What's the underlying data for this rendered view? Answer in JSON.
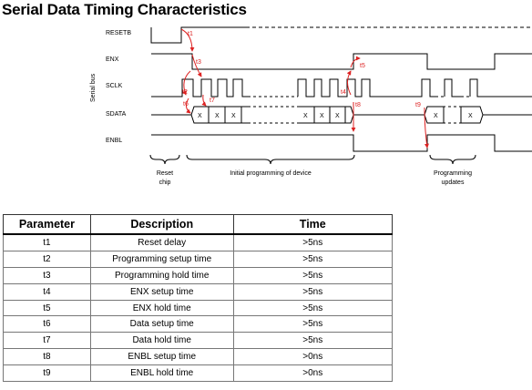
{
  "title": "Serial Data Timing Characteristics",
  "signals": {
    "resetb": "RESETB",
    "enx": "ENX",
    "sclk": "SCLK",
    "sdata": "SDATA",
    "enbl": "ENBL",
    "bus_label": "Serial bus"
  },
  "timing_labels": [
    "t1",
    "t2",
    "t3",
    "t4",
    "t5",
    "t6",
    "t7",
    "t8",
    "t9"
  ],
  "data_bit_label": "X",
  "captions": {
    "reset_line1": "Reset",
    "reset_line2": "chip",
    "initial": "Initial programming of device",
    "updates_line1": "Programming",
    "updates_line2": "updates"
  },
  "table": {
    "headers": [
      "Parameter",
      "Description",
      "Time"
    ],
    "rows": [
      [
        "t1",
        "Reset delay",
        ">5ns"
      ],
      [
        "t2",
        "Programming setup time",
        ">5ns"
      ],
      [
        "t3",
        "Programming hold time",
        ">5ns"
      ],
      [
        "t4",
        "ENX setup time",
        ">5ns"
      ],
      [
        "t5",
        "ENX hold time",
        ">5ns"
      ],
      [
        "t6",
        "Data setup time",
        ">5ns"
      ],
      [
        "t7",
        "Data hold time",
        ">5ns"
      ],
      [
        "t8",
        "ENBL setup time",
        ">0ns"
      ],
      [
        "t9",
        "ENBL hold time",
        ">0ns"
      ]
    ]
  },
  "colors": {
    "timing_arrow": "#dd2222",
    "waveform": "#000000"
  }
}
